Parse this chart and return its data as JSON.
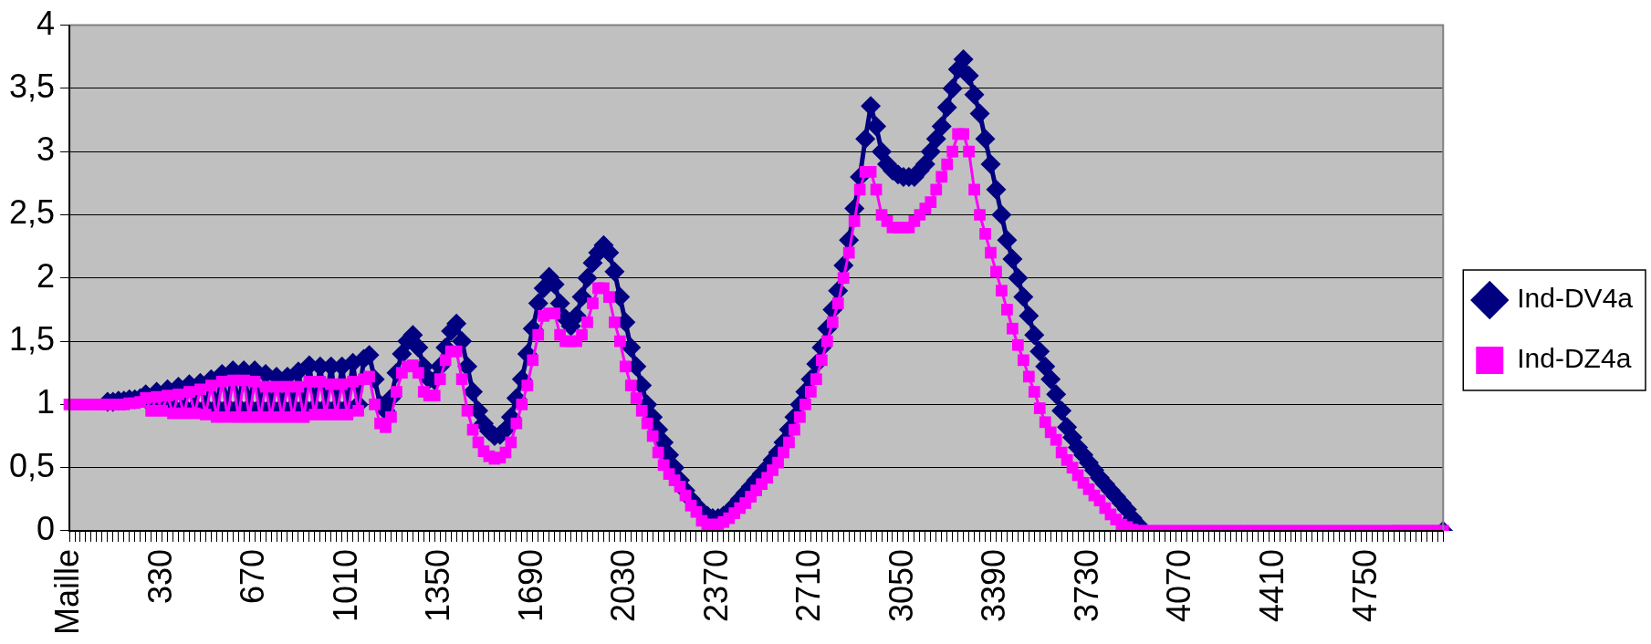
{
  "chart_data": {
    "type": "line",
    "categories": [
      "Maille",
      null,
      null,
      null,
      null,
      null,
      null,
      null,
      null,
      null,
      null,
      null,
      null,
      null,
      null,
      null,
      null,
      "330",
      null,
      null,
      null,
      null,
      null,
      null,
      null,
      null,
      null,
      null,
      null,
      null,
      null,
      null,
      null,
      null,
      "670",
      null,
      null,
      null,
      null,
      null,
      null,
      null,
      null,
      null,
      null,
      null,
      null,
      null,
      null,
      null,
      null,
      "1010",
      null,
      null,
      null,
      null,
      null,
      null,
      null,
      null,
      null,
      null,
      null,
      null,
      null,
      null,
      null,
      null,
      "1350",
      null,
      null,
      null,
      null,
      null,
      null,
      null,
      null,
      null,
      null,
      null,
      null,
      null,
      null,
      null,
      null,
      "1690",
      null,
      null,
      null,
      null,
      null,
      null,
      null,
      null,
      null,
      null,
      null,
      null,
      null,
      null,
      null,
      null,
      "2030",
      null,
      null,
      null,
      null,
      null,
      null,
      null,
      null,
      null,
      null,
      null,
      null,
      null,
      null,
      null,
      null,
      "2370",
      null,
      null,
      null,
      null,
      null,
      null,
      null,
      null,
      null,
      null,
      null,
      null,
      null,
      null,
      null,
      null,
      "2710",
      null,
      null,
      null,
      null,
      null,
      null,
      null,
      null,
      null,
      null,
      null,
      null,
      null,
      null,
      null,
      null,
      "3050",
      null,
      null,
      null,
      null,
      null,
      null,
      null,
      null,
      null,
      null,
      null,
      null,
      null,
      null,
      null,
      null,
      "3390",
      null,
      null,
      null,
      null,
      null,
      null,
      null,
      null,
      null,
      null,
      null,
      null,
      null,
      null,
      null,
      null,
      "3730",
      null,
      null,
      null,
      null,
      null,
      null,
      null,
      null,
      null,
      null,
      null,
      null,
      null,
      null,
      null,
      null,
      "4070",
      null,
      null,
      null,
      null,
      null,
      null,
      null,
      null,
      null,
      null,
      null,
      null,
      null,
      null,
      null,
      null,
      "4410",
      null,
      null,
      null,
      null,
      null,
      null,
      null,
      null,
      null,
      null,
      null,
      null,
      null,
      null,
      null,
      null,
      "4750",
      null,
      null,
      null,
      null,
      null,
      null,
      null,
      null,
      null,
      null,
      null,
      null,
      null,
      null
    ],
    "series": [
      {
        "name": "Ind-DV4a",
        "color": "#000080",
        "marker": "diamond",
        "values": [
          null,
          null,
          null,
          null,
          null,
          null,
          null,
          1.02,
          1.02,
          1.03,
          1.03,
          1.04,
          1.04,
          1.05,
          1.08,
          1.0,
          1.1,
          1.0,
          1.12,
          0.98,
          1.14,
          0.98,
          1.16,
          0.98,
          1.17,
          0.98,
          1.2,
          0.98,
          1.24,
          0.98,
          1.27,
          0.98,
          1.27,
          0.98,
          1.27,
          0.98,
          1.24,
          0.98,
          1.22,
          0.98,
          1.22,
          0.98,
          1.26,
          0.98,
          1.31,
          0.98,
          1.3,
          0.98,
          1.3,
          0.98,
          1.3,
          0.98,
          1.33,
          1.0,
          1.36,
          1.39,
          1.2,
          1.0,
          0.95,
          1.05,
          1.25,
          1.4,
          1.5,
          1.55,
          1.45,
          1.3,
          1.2,
          1.19,
          1.3,
          1.45,
          1.58,
          1.64,
          1.5,
          1.3,
          1.1,
          0.95,
          0.85,
          0.79,
          0.75,
          0.76,
          0.8,
          0.9,
          1.05,
          1.2,
          1.4,
          1.6,
          1.8,
          1.92,
          2.01,
          1.95,
          1.8,
          1.68,
          1.62,
          1.7,
          1.85,
          2.0,
          2.12,
          2.2,
          2.26,
          2.2,
          2.05,
          1.85,
          1.65,
          1.45,
          1.3,
          1.15,
          1.0,
          0.9,
          0.8,
          0.7,
          0.6,
          0.5,
          0.4,
          0.32,
          0.25,
          0.2,
          0.15,
          0.12,
          0.1,
          0.1,
          0.12,
          0.15,
          0.2,
          0.25,
          0.3,
          0.35,
          0.4,
          0.45,
          0.5,
          0.56,
          0.62,
          0.7,
          0.8,
          0.9,
          1.0,
          1.1,
          1.2,
          1.32,
          1.45,
          1.6,
          1.75,
          1.9,
          2.1,
          2.3,
          2.55,
          2.8,
          3.1,
          3.36,
          3.2,
          3.0,
          2.9,
          2.85,
          2.82,
          2.8,
          2.8,
          2.8,
          2.85,
          2.9,
          3.0,
          3.1,
          3.2,
          3.35,
          3.5,
          3.65,
          3.73,
          3.6,
          3.45,
          3.3,
          3.1,
          2.9,
          2.7,
          2.5,
          2.3,
          2.15,
          2.0,
          1.85,
          1.7,
          1.55,
          1.42,
          1.3,
          1.2,
          1.08,
          0.95,
          0.82,
          0.74,
          0.66,
          0.6,
          0.54,
          0.48,
          0.42,
          0.37,
          0.32,
          0.27,
          0.22,
          0.17,
          0.1,
          0.05,
          null,
          null,
          null,
          null,
          null,
          null,
          null,
          null,
          null,
          null,
          null,
          null,
          null,
          null,
          null,
          null,
          null,
          null,
          null,
          null,
          null,
          null,
          null,
          null,
          null,
          null,
          null,
          null,
          null,
          null,
          null,
          null,
          null,
          null,
          null,
          null,
          null,
          null,
          null,
          null,
          null,
          null,
          null,
          null,
          null,
          null,
          null,
          null,
          null,
          null,
          null,
          null,
          null,
          null,
          null,
          0
        ]
      },
      {
        "name": "Ind-DZ4a",
        "color": "#ff00ff",
        "marker": "square",
        "values": [
          1,
          1,
          1,
          1,
          1,
          1,
          1,
          1,
          1,
          1,
          1,
          1.01,
          1.01,
          1.02,
          1.05,
          0.95,
          1.06,
          0.95,
          1.07,
          0.93,
          1.08,
          0.93,
          1.1,
          0.93,
          1.12,
          0.92,
          1.15,
          0.9,
          1.18,
          0.9,
          1.19,
          0.9,
          1.19,
          0.9,
          1.18,
          0.9,
          1.14,
          0.9,
          1.14,
          0.9,
          1.14,
          0.9,
          1.14,
          0.9,
          1.18,
          0.92,
          1.18,
          0.92,
          1.16,
          0.92,
          1.16,
          0.92,
          1.18,
          0.95,
          1.2,
          1.22,
          1.0,
          0.85,
          0.82,
          0.9,
          1.1,
          1.25,
          1.3,
          1.31,
          1.25,
          1.1,
          1.07,
          1.07,
          1.2,
          1.35,
          1.42,
          1.42,
          1.2,
          0.95,
          0.8,
          0.7,
          0.63,
          0.59,
          0.57,
          0.58,
          0.62,
          0.7,
          0.85,
          1.0,
          1.15,
          1.35,
          1.55,
          1.7,
          1.72,
          1.72,
          1.55,
          1.5,
          1.5,
          1.5,
          1.55,
          1.65,
          1.8,
          1.92,
          1.92,
          1.85,
          1.65,
          1.5,
          1.3,
          1.15,
          1.05,
          0.95,
          0.85,
          0.75,
          0.62,
          0.52,
          0.45,
          0.4,
          0.35,
          0.28,
          0.2,
          0.15,
          0.08,
          0.05,
          0.05,
          0.05,
          0.07,
          0.1,
          0.14,
          0.18,
          0.22,
          0.27,
          0.32,
          0.37,
          0.42,
          0.48,
          0.54,
          0.62,
          0.7,
          0.8,
          0.9,
          1.0,
          1.1,
          1.2,
          1.35,
          1.5,
          1.65,
          1.8,
          2.0,
          2.2,
          2.45,
          2.7,
          2.84,
          2.84,
          2.7,
          2.5,
          2.45,
          2.4,
          2.4,
          2.4,
          2.4,
          2.45,
          2.5,
          2.55,
          2.6,
          2.7,
          2.8,
          2.9,
          3.0,
          3.14,
          3.14,
          3.0,
          2.7,
          2.5,
          2.35,
          2.2,
          2.05,
          1.9,
          1.75,
          1.6,
          1.47,
          1.35,
          1.22,
          1.1,
          0.97,
          0.86,
          0.78,
          0.72,
          0.62,
          0.56,
          0.5,
          0.44,
          0.38,
          0.33,
          0.28,
          0.24,
          0.18,
          0.13,
          0.09,
          0.05,
          0.03,
          0.01,
          0,
          0,
          0,
          0,
          0,
          0,
          0,
          0,
          0,
          0,
          0,
          0,
          0,
          0,
          0,
          0,
          0,
          0,
          0,
          0,
          0,
          0,
          0,
          0,
          0,
          0,
          0,
          0,
          0,
          0,
          0,
          0,
          0,
          0,
          0,
          0,
          0,
          0,
          0,
          0,
          0,
          0,
          0,
          0,
          0,
          0,
          0,
          0,
          0,
          0,
          0,
          0,
          0,
          0,
          0,
          0,
          0
        ]
      }
    ],
    "ylim": [
      0,
      4
    ],
    "yticks": [
      0,
      {
        "value": 0.5,
        "label": "0,5"
      },
      1,
      {
        "value": 1.5,
        "label": "1,5"
      },
      2,
      {
        "value": 2.5,
        "label": "2,5"
      },
      3,
      {
        "value": 3.5,
        "label": "3,5"
      },
      4
    ],
    "grid": "y",
    "legend": "right"
  }
}
